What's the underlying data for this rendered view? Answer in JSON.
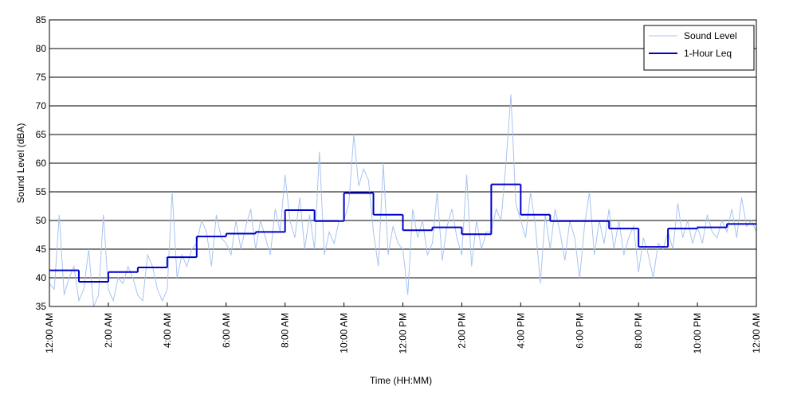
{
  "chart_data": {
    "type": "line",
    "xlabel": "Time (HH:MM)",
    "ylabel": "Sound Level (dBA)",
    "xlim": [
      0,
      1440
    ],
    "ylim": [
      35,
      85
    ],
    "xticks": [
      {
        "value": 0,
        "label": "12:00 AM"
      },
      {
        "value": 120,
        "label": "2:00 AM"
      },
      {
        "value": 240,
        "label": "4:00 AM"
      },
      {
        "value": 360,
        "label": "6:00 AM"
      },
      {
        "value": 480,
        "label": "8:00 AM"
      },
      {
        "value": 600,
        "label": "10:00 AM"
      },
      {
        "value": 720,
        "label": "12:00 PM"
      },
      {
        "value": 840,
        "label": "2:00 PM"
      },
      {
        "value": 960,
        "label": "4:00 PM"
      },
      {
        "value": 1080,
        "label": "6:00 PM"
      },
      {
        "value": 1200,
        "label": "8:00 PM"
      },
      {
        "value": 1320,
        "label": "10:00 PM"
      },
      {
        "value": 1440,
        "label": "12:00 AM"
      }
    ],
    "yticks": [
      35,
      40,
      45,
      50,
      55,
      60,
      65,
      70,
      75,
      80,
      85
    ],
    "grid": true,
    "legend": "upper right",
    "series": [
      {
        "name": "Sound Level",
        "color": "#a8c4f0",
        "step": false,
        "x": [
          0,
          10,
          20,
          30,
          40,
          50,
          60,
          70,
          80,
          90,
          100,
          110,
          120,
          130,
          140,
          150,
          160,
          170,
          180,
          190,
          200,
          210,
          220,
          230,
          240,
          250,
          260,
          270,
          280,
          290,
          300,
          310,
          320,
          330,
          340,
          350,
          360,
          370,
          380,
          390,
          400,
          410,
          420,
          430,
          440,
          450,
          460,
          470,
          480,
          490,
          500,
          510,
          520,
          530,
          540,
          550,
          560,
          570,
          580,
          590,
          600,
          610,
          620,
          630,
          640,
          650,
          660,
          670,
          680,
          690,
          700,
          710,
          720,
          730,
          740,
          750,
          760,
          770,
          780,
          790,
          800,
          810,
          820,
          830,
          840,
          850,
          860,
          870,
          880,
          890,
          900,
          910,
          920,
          930,
          940,
          950,
          960,
          970,
          980,
          990,
          1000,
          1010,
          1020,
          1030,
          1040,
          1050,
          1060,
          1070,
          1080,
          1090,
          1100,
          1110,
          1120,
          1130,
          1140,
          1150,
          1160,
          1170,
          1180,
          1190,
          1200,
          1210,
          1220,
          1230,
          1240,
          1250,
          1260,
          1270,
          1280,
          1290,
          1300,
          1310,
          1320,
          1330,
          1340,
          1350,
          1360,
          1370,
          1380,
          1390,
          1400,
          1410,
          1420,
          1430,
          1440
        ],
        "values": [
          39,
          38,
          51,
          37,
          40,
          42,
          36,
          38,
          45,
          35,
          37,
          51,
          38,
          36,
          40,
          39,
          42,
          40,
          37,
          36,
          44,
          42,
          38,
          36,
          38,
          55,
          40,
          44,
          42,
          45,
          46,
          50,
          48,
          42,
          51,
          47,
          46,
          44,
          50,
          45,
          49,
          52,
          45,
          50,
          47,
          44,
          52,
          48,
          58,
          50,
          47,
          54,
          45,
          51,
          45,
          62,
          44,
          48,
          46,
          50,
          50,
          53,
          65,
          56,
          59,
          57,
          48,
          42,
          60,
          44,
          49,
          46,
          45,
          37,
          52,
          47,
          50,
          44,
          46,
          55,
          43,
          49,
          52,
          47,
          44,
          58,
          42,
          50,
          45,
          48,
          48,
          52,
          50,
          60,
          72,
          53,
          50,
          47,
          55,
          49,
          39,
          51,
          45,
          52,
          48,
          43,
          50,
          47,
          40,
          49,
          55,
          44,
          50,
          46,
          52,
          45,
          50,
          44,
          47,
          49,
          41,
          47,
          44,
          40,
          46,
          45,
          48,
          45,
          53,
          47,
          50,
          46,
          49,
          46,
          51,
          48,
          47,
          50,
          48,
          52,
          47,
          54,
          49,
          50,
          48
        ]
      },
      {
        "name": "1-Hour Leq",
        "color": "#0000cc",
        "step": true,
        "x": [
          0,
          60,
          120,
          180,
          240,
          300,
          360,
          420,
          480,
          540,
          600,
          660,
          720,
          780,
          840,
          900,
          960,
          1020,
          1080,
          1140,
          1200,
          1260,
          1320,
          1380
        ],
        "values": [
          41.3,
          39.3,
          41.0,
          41.8,
          43.6,
          47.2,
          47.7,
          48.0,
          51.8,
          49.9,
          54.8,
          51.0,
          48.3,
          48.8,
          47.6,
          56.3,
          51.0,
          49.9,
          49.9,
          48.6,
          45.4,
          48.6,
          48.8,
          49.4
        ]
      }
    ]
  }
}
